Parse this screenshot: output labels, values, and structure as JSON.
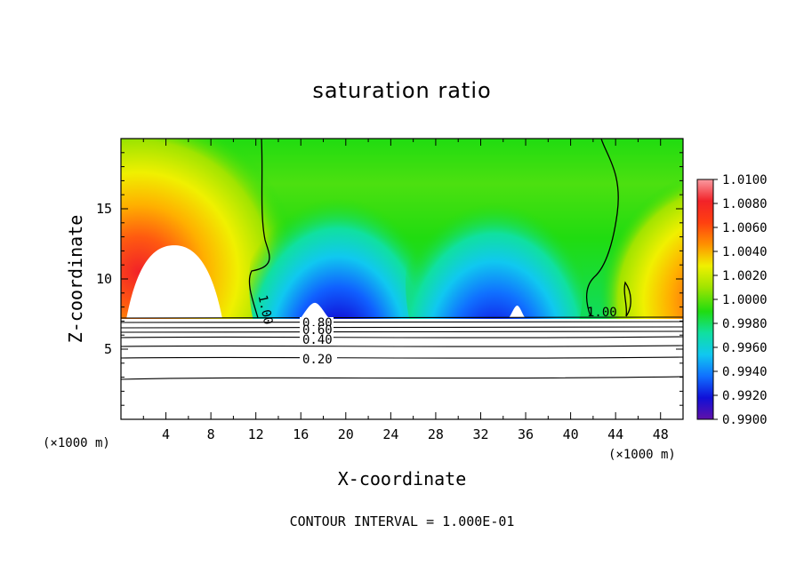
{
  "chart_data": {
    "type": "heatmap",
    "title": "saturation ratio",
    "xlabel": "X-coordinate",
    "ylabel": "Z-coordinate",
    "x_unit": "(x1000 m)",
    "x_unit_display": "(×1000 m)",
    "xlim": [
      0,
      50
    ],
    "ylim": [
      0,
      20
    ],
    "x_ticks": [
      4,
      8,
      12,
      16,
      20,
      24,
      28,
      32,
      36,
      40,
      44,
      48
    ],
    "y_ticks": [
      5,
      10,
      15
    ],
    "colorbar": {
      "min": 0.99,
      "max": 1.01,
      "labels": [
        "1.0100",
        "1.0080",
        "1.0060",
        "1.0040",
        "1.0020",
        "1.0000",
        "0.9980",
        "0.9960",
        "0.9940",
        "0.9920",
        "0.9900"
      ],
      "colors": [
        "#fa9aa0",
        "#f22228",
        "#ff6a10",
        "#ffb000",
        "#f0f000",
        "#a0e400",
        "#20dc10",
        "#10e0a0",
        "#10c8f0",
        "#1080ff",
        "#1010d8",
        "#6010a8"
      ]
    },
    "contour_interval": "CONTOUR INTERVAL = 1.000E-01",
    "contour_labels": [
      "1.00",
      "1.00",
      "0.80",
      "0.60",
      "0.40",
      "0.20"
    ],
    "contour_levels_below_cloud_base": [
      0.2,
      0.4,
      0.6,
      0.8
    ],
    "cloud_base_z": 7.3,
    "dry_pockets": [
      {
        "x_range": [
          0.5,
          9
        ],
        "z_top": 12.4
      },
      {
        "x_range": [
          16,
          18.5
        ],
        "z_top": 8.3
      },
      {
        "x_range": [
          34.5,
          36
        ],
        "z_top": 8.1
      }
    ],
    "features": [
      {
        "type": "supersaturated",
        "x_range": [
          0,
          12
        ],
        "z_range": [
          9,
          18
        ],
        "max": 1.0075
      },
      {
        "type": "subsaturated",
        "x_range": [
          15,
          26
        ],
        "z_range": [
          7.3,
          13
        ],
        "min": 0.991
      },
      {
        "type": "subsaturated",
        "x_range": [
          27,
          40
        ],
        "z_range": [
          7.3,
          13
        ],
        "min": 0.992
      },
      {
        "type": "supersaturated",
        "x_range": [
          44,
          50
        ],
        "z_range": [
          8,
          16
        ],
        "max": 1.006
      }
    ]
  }
}
